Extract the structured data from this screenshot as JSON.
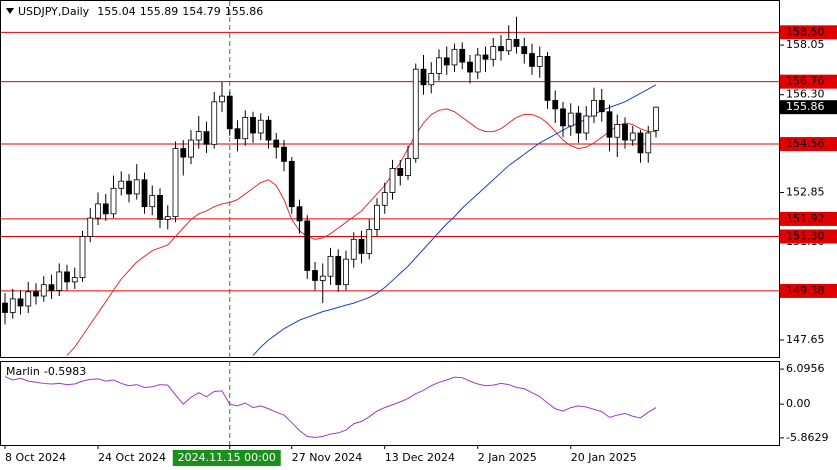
{
  "chart_data": {
    "type": "candlestick",
    "title": "USDJPY,Daily",
    "categories": [
      "8 Oct 2024",
      null,
      null,
      null,
      null,
      null,
      null,
      null,
      null,
      null,
      null,
      null,
      "24 Oct 2024",
      null,
      null,
      null,
      null,
      null,
      null,
      null,
      null,
      null,
      null,
      null,
      null,
      null,
      null,
      null,
      null,
      "2024.11.15 00:00",
      null,
      null,
      null,
      null,
      null,
      null,
      null,
      "27 Nov 2024",
      null,
      null,
      null,
      null,
      null,
      null,
      null,
      null,
      null,
      null,
      null,
      "13 Dec 2024",
      null,
      null,
      null,
      null,
      null,
      null,
      null,
      null,
      null,
      null,
      null,
      "2 Jan 2025",
      null,
      null,
      null,
      null,
      null,
      null,
      null,
      null,
      null,
      null,
      null,
      "20 Jan 2025",
      null,
      null,
      null,
      null,
      null,
      null,
      null,
      null,
      null,
      null,
      null
    ],
    "open": [
      148.95,
      148.62,
      149.1,
      148.85,
      149.35,
      149.2,
      149.6,
      149.4,
      150.05,
      149.7,
      149.85,
      151.3,
      151.95,
      152.45,
      152.1,
      153.0,
      153.25,
      152.8,
      153.3,
      152.35,
      152.75,
      151.9,
      152.0,
      154.4,
      154.1,
      154.7,
      155.0,
      154.55,
      156.05,
      156.25,
      155.1,
      154.75,
      155.5,
      154.95,
      155.4,
      154.7,
      154.45,
      153.95,
      152.35,
      151.85,
      150.1,
      149.75,
      149.9,
      150.6,
      149.6,
      150.5,
      151.2,
      150.7,
      151.55,
      152.4,
      152.85,
      153.7,
      153.45,
      154.05,
      157.2,
      156.65,
      157.05,
      157.6,
      157.35,
      157.9,
      157.45,
      157.1,
      157.7,
      157.55,
      158.0,
      157.85,
      158.25,
      158.0,
      157.75,
      157.3,
      157.65,
      156.1,
      155.8,
      155.2,
      155.65,
      154.95,
      155.55,
      156.1,
      155.7,
      154.8,
      155.25,
      154.7,
      154.95,
      154.25,
      155.04
    ],
    "high": [
      149.3,
      149.45,
      149.4,
      149.7,
      149.65,
      149.9,
      149.95,
      150.35,
      150.3,
      150.2,
      151.5,
      152.3,
      152.85,
      152.8,
      153.45,
      153.6,
      153.5,
      153.85,
      153.55,
      153.1,
      153.0,
      152.4,
      154.65,
      154.7,
      155.05,
      155.55,
      155.35,
      156.4,
      156.75,
      156.4,
      155.4,
      155.75,
      155.7,
      155.65,
      155.55,
      154.95,
      154.7,
      154.1,
      152.6,
      152.05,
      150.4,
      150.35,
      150.9,
      150.85,
      150.8,
      151.45,
      151.5,
      151.9,
      152.65,
      153.2,
      154.0,
      154.0,
      154.5,
      157.4,
      157.7,
      157.45,
      157.9,
      158.0,
      158.1,
      158.15,
      157.7,
      157.95,
      158.0,
      158.3,
      158.4,
      158.75,
      159.05,
      158.3,
      158.1,
      158.0,
      157.8,
      156.45,
      156.05,
      156.0,
      155.9,
      155.9,
      156.55,
      156.5,
      155.95,
      155.6,
      155.5,
      155.2,
      155.05,
      155.2,
      155.89
    ],
    "low": [
      148.2,
      148.4,
      148.55,
      148.6,
      148.9,
      149.0,
      149.1,
      149.2,
      149.4,
      149.45,
      149.7,
      151.1,
      151.7,
      151.85,
      151.95,
      152.75,
      152.5,
      152.6,
      152.1,
      152.05,
      151.6,
      151.55,
      151.8,
      153.45,
      153.85,
      154.4,
      154.25,
      154.4,
      155.7,
      154.85,
      154.3,
      154.5,
      154.6,
      154.7,
      154.4,
      154.05,
      153.6,
      152.1,
      151.4,
      149.8,
      149.4,
      148.95,
      149.6,
      149.35,
      149.4,
      150.2,
      150.35,
      150.5,
      151.3,
      152.1,
      152.6,
      153.1,
      153.3,
      153.9,
      156.3,
      156.35,
      156.8,
      157.0,
      157.1,
      157.2,
      156.7,
      156.85,
      157.1,
      157.3,
      157.5,
      157.7,
      157.75,
      157.4,
      157.0,
      156.9,
      155.8,
      155.3,
      154.8,
      154.85,
      154.6,
      154.7,
      155.3,
      155.35,
      154.3,
      154.1,
      154.4,
      154.5,
      153.9,
      153.9,
      154.79
    ],
    "close": [
      148.62,
      149.1,
      148.85,
      149.35,
      149.2,
      149.6,
      149.4,
      150.05,
      149.7,
      149.85,
      151.3,
      151.95,
      152.45,
      152.1,
      153.0,
      153.25,
      152.8,
      153.3,
      152.35,
      152.75,
      151.9,
      152.0,
      154.4,
      154.1,
      154.7,
      155.0,
      154.55,
      156.05,
      156.25,
      155.1,
      154.75,
      155.5,
      154.95,
      155.4,
      154.7,
      154.45,
      153.95,
      152.35,
      151.85,
      150.1,
      149.75,
      149.9,
      150.6,
      149.6,
      150.5,
      151.2,
      150.7,
      151.55,
      152.4,
      152.85,
      153.7,
      153.45,
      154.05,
      157.2,
      156.65,
      157.05,
      157.6,
      157.35,
      157.9,
      157.45,
      157.1,
      157.7,
      157.55,
      158.0,
      157.85,
      158.25,
      158.0,
      157.75,
      157.3,
      157.65,
      156.1,
      155.8,
      155.2,
      155.65,
      154.95,
      155.55,
      156.1,
      155.7,
      154.8,
      155.25,
      154.7,
      154.95,
      154.25,
      154.95,
      155.86
    ],
    "up_color": "#ffffff",
    "down_color": "#000000",
    "ylim": [
      147.05,
      159.64
    ],
    "yticks": [
      158.05,
      {
        "value": 156.3,
        "label": "156.30"
      },
      152.85,
      {
        "value": 151.1,
        "label": "151.10"
      },
      147.65
    ],
    "lines": [
      {
        "color": "#e03030",
        "values": [
          null,
          null,
          null,
          null,
          null,
          null,
          null,
          null,
          147.1,
          147.4,
          147.8,
          148.2,
          148.6,
          149.0,
          149.4,
          149.8,
          150.1,
          150.4,
          150.6,
          150.8,
          150.9,
          151.0,
          151.3,
          151.6,
          151.9,
          152.1,
          152.2,
          152.35,
          152.45,
          152.5,
          152.6,
          152.8,
          153.0,
          153.2,
          153.3,
          153.1,
          152.6,
          151.9,
          151.5,
          151.3,
          151.2,
          151.25,
          151.4,
          151.6,
          151.8,
          152.0,
          152.2,
          152.5,
          152.8,
          153.1,
          153.5,
          153.9,
          154.4,
          154.9,
          155.3,
          155.6,
          155.75,
          155.8,
          155.7,
          155.5,
          155.3,
          155.1,
          155.0,
          155.0,
          155.1,
          155.3,
          155.5,
          155.6,
          155.6,
          155.5,
          155.3,
          155.0,
          154.7,
          154.5,
          154.4,
          154.45,
          154.6,
          154.8,
          155.0,
          155.2,
          155.3,
          155.25,
          155.1,
          155.0,
          155.0
        ]
      },
      {
        "color": "#2040c8",
        "values": [
          null,
          null,
          null,
          null,
          null,
          null,
          null,
          null,
          null,
          null,
          null,
          null,
          null,
          null,
          null,
          null,
          null,
          null,
          null,
          null,
          null,
          null,
          null,
          null,
          null,
          null,
          null,
          null,
          null,
          null,
          null,
          null,
          147.1,
          147.4,
          147.65,
          147.85,
          148.05,
          148.2,
          148.35,
          148.45,
          148.55,
          148.65,
          148.72,
          148.8,
          148.88,
          148.95,
          149.05,
          149.15,
          149.3,
          149.5,
          149.75,
          150.0,
          150.25,
          150.55,
          150.85,
          151.15,
          151.45,
          151.75,
          152.0,
          152.3,
          152.55,
          152.8,
          153.05,
          153.3,
          153.55,
          153.8,
          154.0,
          154.2,
          154.4,
          154.6,
          154.75,
          154.9,
          155.05,
          155.2,
          155.3,
          155.45,
          155.6,
          155.75,
          155.85,
          155.95,
          156.05,
          156.2,
          156.35,
          156.5,
          156.65
        ]
      }
    ],
    "levels": {
      "color": "#e00000",
      "values": [
        {
          "value": 158.5,
          "label": "158.50"
        },
        {
          "value": 156.76,
          "label": "156.76"
        },
        {
          "value": 154.56,
          "label": "154.56"
        },
        {
          "value": 151.92,
          "label": "151.92"
        },
        {
          "value": 151.3,
          "label": "151.30"
        },
        {
          "value": 149.38,
          "label": "149.38"
        }
      ]
    },
    "crosshair": {
      "category": 29,
      "color": "#1a8f1a"
    },
    "indicator": {
      "name": "Marlin",
      "color": "#9a3cc8",
      "values": [
        4.8,
        4.2,
        4.5,
        4.0,
        3.8,
        3.6,
        3.5,
        3.6,
        3.4,
        3.5,
        4.0,
        4.3,
        4.4,
        4.0,
        4.2,
        3.6,
        3.2,
        3.4,
        2.9,
        3.0,
        3.4,
        3.3,
        1.6,
        0.0,
        1.2,
        2.0,
        1.3,
        2.2,
        2.3,
        0.0,
        -0.3,
        0.2,
        -0.6,
        -0.3,
        -0.8,
        -1.4,
        -1.9,
        -3.2,
        -4.6,
        -5.6,
        -5.8,
        -5.6,
        -5.2,
        -5.0,
        -4.5,
        -3.4,
        -3.0,
        -2.2,
        -1.2,
        -0.6,
        -0.1,
        0.4,
        1.0,
        1.8,
        2.4,
        3.2,
        3.8,
        4.2,
        4.7,
        4.6,
        4.0,
        3.5,
        3.2,
        3.3,
        3.6,
        3.4,
        2.9,
        2.7,
        2.0,
        1.3,
        0.2,
        -0.8,
        -1.2,
        -0.6,
        -0.3,
        -0.5,
        -0.9,
        -1.3,
        -2.3,
        -1.9,
        -1.6,
        -2.1,
        -2.4,
        -1.4,
        -0.5983
      ],
      "ylim": [
        -7.1,
        7.5
      ],
      "yticks": [
        6.0956,
        {
          "value": 0,
          "label": "0.00"
        },
        -5.8629
      ]
    }
  }
}
